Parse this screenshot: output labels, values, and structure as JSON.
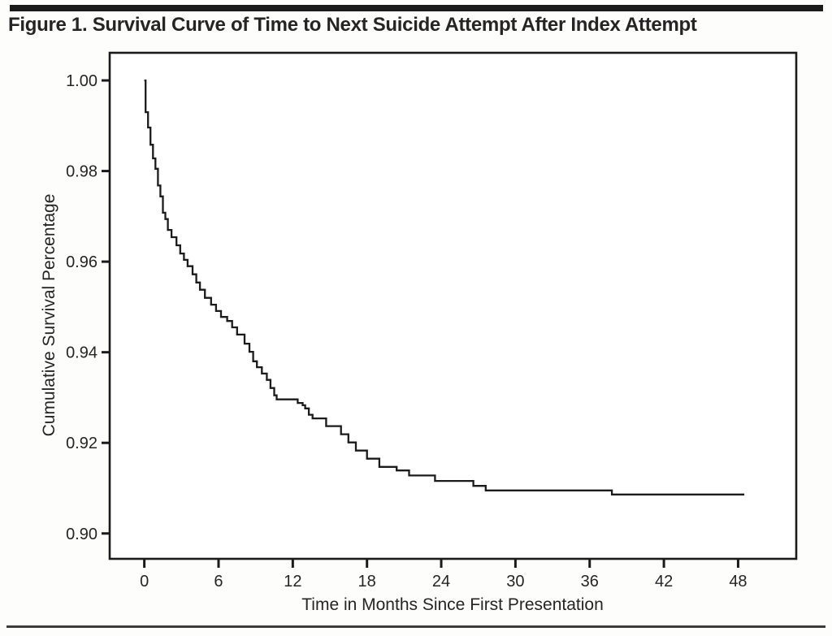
{
  "figure": {
    "title": "Figure 1. Survival Curve of Time to Next Suicide Attempt After Index Attempt"
  },
  "colors": {
    "ink": "#1b1b1b",
    "text": "#272425",
    "background": "#fdfdfc",
    "plot_background": "#ffffff",
    "curve": "#1b1b1b"
  },
  "chart_data": {
    "type": "line",
    "step": "after",
    "title": "Figure 1. Survival Curve of Time to Next Suicide Attempt After Index Attempt",
    "xlabel": "Time in Months Since First Presentation",
    "ylabel": "Cumulative Survival Percentage",
    "xlim": [
      -2.8,
      52.7
    ],
    "ylim": [
      0.8944,
      1.0061
    ],
    "grid": false,
    "legend": null,
    "x_ticks": [
      0,
      6,
      12,
      18,
      24,
      30,
      36,
      42,
      48
    ],
    "x_tick_labels": [
      "0",
      "6",
      "12",
      "18",
      "24",
      "30",
      "36",
      "42",
      "48"
    ],
    "y_ticks": [
      1.0,
      0.98,
      0.96,
      0.94,
      0.92,
      0.9
    ],
    "y_tick_labels": [
      "1.00",
      "0.98",
      "0.96",
      "0.94",
      "0.92",
      "0.90"
    ],
    "series": [
      {
        "name": "cumulative-survival",
        "points": [
          [
            0,
            1.0
          ],
          [
            0.1,
            0.993
          ],
          [
            0.3,
            0.9896
          ],
          [
            0.5,
            0.9858
          ],
          [
            0.7,
            0.9828
          ],
          [
            0.9,
            0.9805
          ],
          [
            1.1,
            0.9768
          ],
          [
            1.3,
            0.9744
          ],
          [
            1.5,
            0.9708
          ],
          [
            1.7,
            0.9694
          ],
          [
            1.9,
            0.967
          ],
          [
            2.2,
            0.9654
          ],
          [
            2.6,
            0.9636
          ],
          [
            2.9,
            0.9618
          ],
          [
            3.2,
            0.9604
          ],
          [
            3.5,
            0.959
          ],
          [
            3.9,
            0.9572
          ],
          [
            4.2,
            0.9554
          ],
          [
            4.5,
            0.9538
          ],
          [
            4.9,
            0.952
          ],
          [
            5.4,
            0.9505
          ],
          [
            5.8,
            0.9491
          ],
          [
            6.2,
            0.9478
          ],
          [
            6.7,
            0.9469
          ],
          [
            7.1,
            0.9455
          ],
          [
            7.5,
            0.9439
          ],
          [
            8.1,
            0.9419
          ],
          [
            8.5,
            0.9401
          ],
          [
            8.8,
            0.938
          ],
          [
            9.1,
            0.9367
          ],
          [
            9.5,
            0.9353
          ],
          [
            9.9,
            0.9339
          ],
          [
            10.2,
            0.9321
          ],
          [
            10.5,
            0.9305
          ],
          [
            10.7,
            0.9296
          ],
          [
            12.4,
            0.9288
          ],
          [
            12.8,
            0.9283
          ],
          [
            13.0,
            0.9276
          ],
          [
            13.3,
            0.9262
          ],
          [
            13.6,
            0.9254
          ],
          [
            14.7,
            0.9237
          ],
          [
            15.9,
            0.9219
          ],
          [
            16.5,
            0.9201
          ],
          [
            17.1,
            0.9183
          ],
          [
            18.0,
            0.9165
          ],
          [
            19.0,
            0.9147
          ],
          [
            20.4,
            0.9139
          ],
          [
            21.4,
            0.9128
          ],
          [
            23.5,
            0.9116
          ],
          [
            26.6,
            0.9105
          ],
          [
            27.6,
            0.9095
          ],
          [
            37.8,
            0.9086
          ],
          [
            48.5,
            0.9086
          ]
        ]
      }
    ]
  }
}
